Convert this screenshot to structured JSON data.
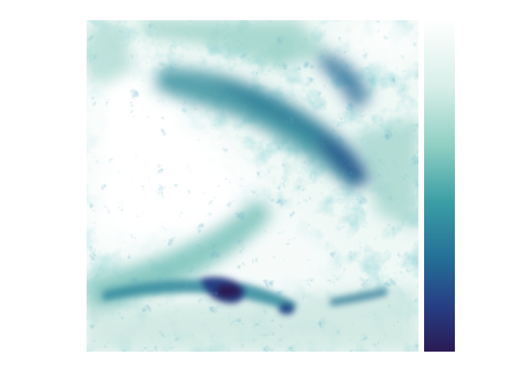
{
  "figure": {
    "colormap": [
      "#ffffff",
      "#d8efe9",
      "#8fcfc3",
      "#3a9ea5",
      "#246f96",
      "#263f84",
      "#2a1a55"
    ],
    "panel_background": "#f4fbf9"
  }
}
